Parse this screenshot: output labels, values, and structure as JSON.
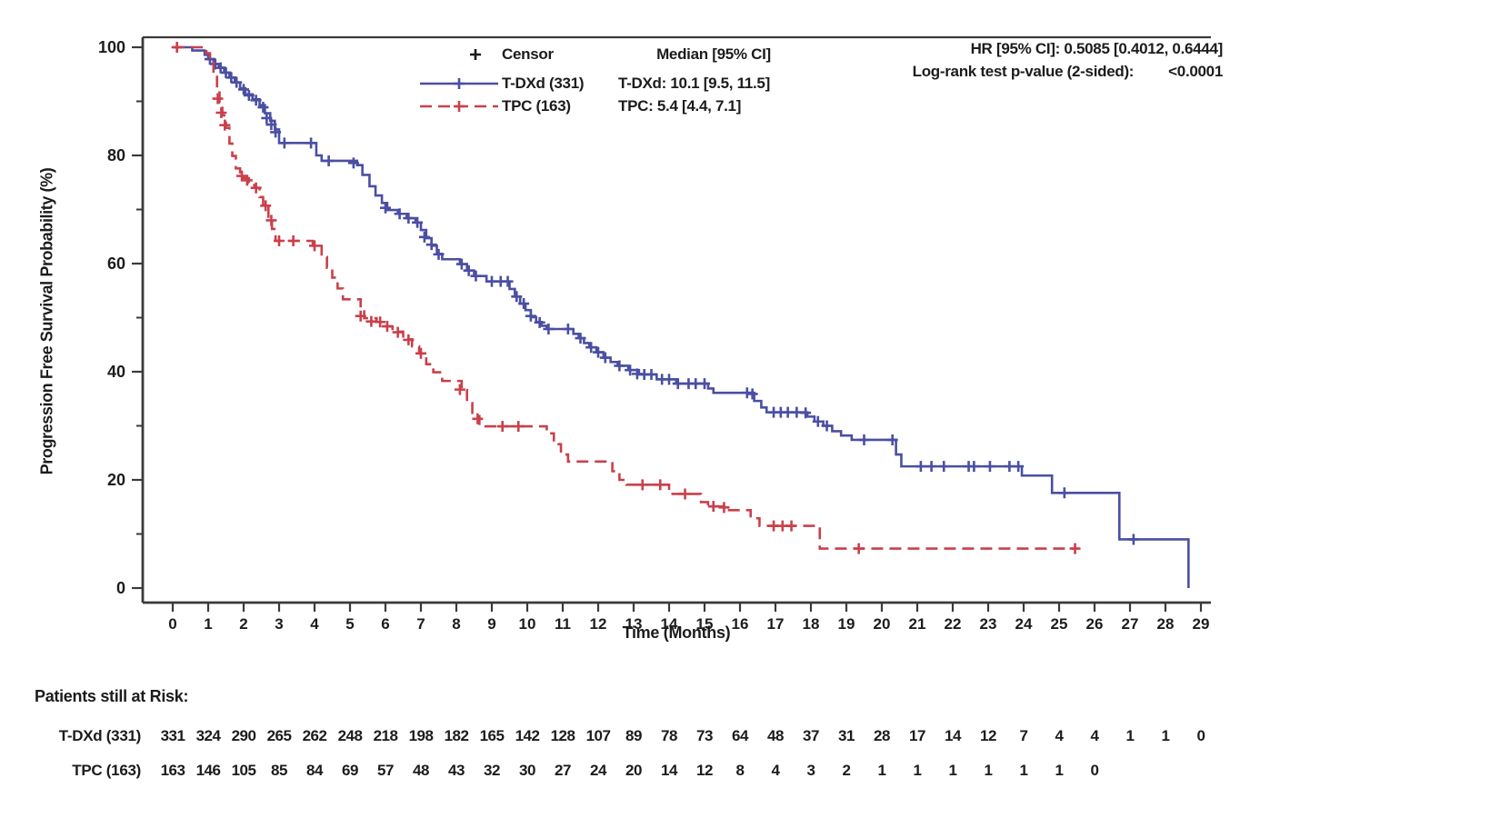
{
  "header": {
    "hr_text": "HR [95% CI]: 0.5085 [0.4012, 0.6444]",
    "logrank_label": "Log-rank test p-value (2-sided):",
    "logrank_value": "<0.0001"
  },
  "legend": {
    "censor_label": "Censor",
    "tdxd_label": "T-DXd (331)",
    "tpc_label": "TPC (163)"
  },
  "medians": {
    "header": "Median [95% CI]",
    "tdxd": "T-DXd: 10.1 [9.5, 11.5]",
    "tpc": "TPC: 5.4 [4.4, 7.1]"
  },
  "chart_data": {
    "type": "line",
    "subtype": "kaplan-meier-step",
    "xlabel": "Time (Months)",
    "ylabel": "Progression Free Survival Probability (%)",
    "xlim": [
      0,
      29
    ],
    "ylim": [
      0,
      100
    ],
    "x_ticks": [
      0,
      1,
      2,
      3,
      4,
      5,
      6,
      7,
      8,
      9,
      10,
      11,
      12,
      13,
      14,
      15,
      16,
      17,
      18,
      19,
      20,
      21,
      22,
      23,
      24,
      25,
      26,
      27,
      28,
      29
    ],
    "y_ticks_major": [
      0,
      20,
      40,
      60,
      80,
      100
    ],
    "y_ticks_minor": [
      10,
      30,
      50,
      70,
      90
    ],
    "grid": false,
    "legend_position": "top-center",
    "colors": {
      "tdxd": "#4a4fa2",
      "tpc": "#c9404b",
      "censor_mark": "#1c1c1c",
      "axis": "#3a3a3a"
    },
    "series": [
      {
        "name": "T-DXd (331)",
        "color": "#4a4fa2",
        "style": "solid",
        "median": 10.1,
        "end_time": 28.65,
        "steps": [
          [
            0,
            100
          ],
          [
            0.55,
            99.4
          ],
          [
            0.9,
            98.6
          ],
          [
            1.0,
            97.8
          ],
          [
            1.15,
            96.9
          ],
          [
            1.3,
            96.2
          ],
          [
            1.45,
            95.3
          ],
          [
            1.6,
            94.4
          ],
          [
            1.75,
            93.5
          ],
          [
            1.9,
            92.4
          ],
          [
            2.05,
            91.3
          ],
          [
            2.25,
            90.4
          ],
          [
            2.45,
            89.3
          ],
          [
            2.6,
            87.8
          ],
          [
            2.75,
            86.4
          ],
          [
            2.88,
            84.8
          ],
          [
            3.0,
            82.3
          ],
          [
            4.05,
            80.0
          ],
          [
            4.2,
            79.0
          ],
          [
            5.2,
            78.2
          ],
          [
            5.35,
            76.4
          ],
          [
            5.55,
            74.3
          ],
          [
            5.72,
            72.6
          ],
          [
            5.9,
            71.2
          ],
          [
            6.05,
            69.9
          ],
          [
            6.35,
            69.2
          ],
          [
            6.6,
            68.4
          ],
          [
            6.85,
            67.6
          ],
          [
            7.0,
            66.2
          ],
          [
            7.15,
            64.7
          ],
          [
            7.3,
            63.3
          ],
          [
            7.45,
            61.8
          ],
          [
            7.6,
            60.8
          ],
          [
            8.1,
            59.9
          ],
          [
            8.3,
            58.7
          ],
          [
            8.5,
            57.7
          ],
          [
            8.85,
            56.7
          ],
          [
            9.5,
            55.3
          ],
          [
            9.65,
            53.9
          ],
          [
            9.8,
            52.6
          ],
          [
            9.95,
            51.4
          ],
          [
            10.1,
            50.1
          ],
          [
            10.25,
            49.2
          ],
          [
            10.4,
            48.5
          ],
          [
            10.55,
            47.9
          ],
          [
            11.3,
            47.0
          ],
          [
            11.45,
            46.2
          ],
          [
            11.6,
            45.3
          ],
          [
            11.75,
            44.5
          ],
          [
            11.95,
            43.6
          ],
          [
            12.15,
            42.6
          ],
          [
            12.35,
            41.8
          ],
          [
            12.55,
            41.1
          ],
          [
            12.85,
            40.3
          ],
          [
            13.15,
            39.5
          ],
          [
            13.65,
            38.6
          ],
          [
            14.2,
            37.8
          ],
          [
            15.1,
            36.9
          ],
          [
            15.25,
            36.1
          ],
          [
            16.4,
            34.6
          ],
          [
            16.6,
            33.4
          ],
          [
            16.75,
            32.5
          ],
          [
            17.9,
            31.7
          ],
          [
            18.1,
            30.8
          ],
          [
            18.35,
            30.0
          ],
          [
            18.6,
            29.0
          ],
          [
            18.85,
            28.2
          ],
          [
            19.15,
            27.4
          ],
          [
            20.4,
            24.7
          ],
          [
            20.55,
            22.5
          ],
          [
            23.95,
            20.8
          ],
          [
            24.8,
            17.6
          ],
          [
            26.7,
            9.0
          ],
          [
            28.65,
            0
          ]
        ],
        "censors": [
          [
            1.05,
            97.8
          ],
          [
            1.2,
            96.9
          ],
          [
            1.35,
            96.2
          ],
          [
            1.5,
            95.3
          ],
          [
            1.65,
            94.4
          ],
          [
            1.8,
            93.5
          ],
          [
            2.0,
            92.2
          ],
          [
            2.15,
            91.1
          ],
          [
            2.35,
            90.2
          ],
          [
            2.55,
            88.9
          ],
          [
            2.65,
            86.9
          ],
          [
            2.78,
            85.7
          ],
          [
            2.9,
            84.3
          ],
          [
            3.15,
            82.3
          ],
          [
            3.9,
            82.3
          ],
          [
            4.4,
            79.0
          ],
          [
            5.1,
            78.6
          ],
          [
            6.0,
            70.3
          ],
          [
            6.4,
            69.2
          ],
          [
            6.65,
            68.4
          ],
          [
            6.9,
            67.6
          ],
          [
            7.1,
            64.9
          ],
          [
            7.3,
            63.5
          ],
          [
            7.5,
            61.7
          ],
          [
            8.15,
            59.9
          ],
          [
            8.35,
            58.7
          ],
          [
            8.55,
            57.7
          ],
          [
            9.0,
            56.7
          ],
          [
            9.25,
            56.7
          ],
          [
            9.45,
            56.7
          ],
          [
            9.7,
            53.9
          ],
          [
            9.9,
            52.6
          ],
          [
            10.1,
            50.3
          ],
          [
            10.35,
            49.1
          ],
          [
            10.6,
            47.9
          ],
          [
            11.15,
            47.9
          ],
          [
            11.5,
            46.2
          ],
          [
            11.8,
            44.5
          ],
          [
            12.0,
            43.6
          ],
          [
            12.2,
            42.6
          ],
          [
            12.6,
            41.1
          ],
          [
            12.9,
            40.3
          ],
          [
            13.1,
            39.6
          ],
          [
            13.3,
            39.5
          ],
          [
            13.5,
            39.5
          ],
          [
            13.8,
            38.6
          ],
          [
            14.0,
            38.6
          ],
          [
            14.25,
            37.8
          ],
          [
            14.55,
            37.8
          ],
          [
            14.75,
            37.8
          ],
          [
            15.0,
            37.8
          ],
          [
            16.2,
            36.1
          ],
          [
            16.35,
            35.9
          ],
          [
            16.95,
            32.5
          ],
          [
            17.15,
            32.5
          ],
          [
            17.35,
            32.5
          ],
          [
            17.6,
            32.5
          ],
          [
            17.85,
            32.4
          ],
          [
            18.2,
            30.8
          ],
          [
            18.45,
            30.0
          ],
          [
            19.5,
            27.4
          ],
          [
            20.3,
            27.4
          ],
          [
            21.1,
            22.5
          ],
          [
            21.4,
            22.5
          ],
          [
            21.75,
            22.5
          ],
          [
            22.45,
            22.5
          ],
          [
            22.6,
            22.5
          ],
          [
            23.05,
            22.5
          ],
          [
            23.6,
            22.5
          ],
          [
            23.85,
            22.5
          ],
          [
            25.15,
            17.6
          ],
          [
            27.1,
            9.0
          ]
        ]
      },
      {
        "name": "TPC (163)",
        "color": "#c9404b",
        "style": "dashed",
        "median": 5.4,
        "end_time": 25.5,
        "steps": [
          [
            0,
            100
          ],
          [
            0.95,
            98.9
          ],
          [
            1.05,
            97.2
          ],
          [
            1.15,
            94.9
          ],
          [
            1.25,
            92.2
          ],
          [
            1.32,
            89.8
          ],
          [
            1.4,
            87.4
          ],
          [
            1.5,
            85.1
          ],
          [
            1.6,
            82.2
          ],
          [
            1.68,
            79.9
          ],
          [
            1.78,
            77.6
          ],
          [
            1.9,
            75.8
          ],
          [
            2.15,
            75.0
          ],
          [
            2.3,
            74.0
          ],
          [
            2.45,
            72.3
          ],
          [
            2.55,
            70.7
          ],
          [
            2.7,
            68.2
          ],
          [
            2.8,
            66.4
          ],
          [
            2.9,
            64.2
          ],
          [
            3.95,
            63.3
          ],
          [
            4.2,
            61.2
          ],
          [
            4.35,
            59.2
          ],
          [
            4.5,
            57.4
          ],
          [
            4.65,
            55.4
          ],
          [
            4.8,
            53.4
          ],
          [
            5.3,
            51.7
          ],
          [
            5.4,
            49.9
          ],
          [
            5.75,
            49.2
          ],
          [
            5.95,
            48.4
          ],
          [
            6.2,
            47.4
          ],
          [
            6.5,
            46.0
          ],
          [
            6.75,
            44.7
          ],
          [
            6.95,
            43.4
          ],
          [
            7.15,
            41.4
          ],
          [
            7.35,
            39.9
          ],
          [
            7.6,
            38.3
          ],
          [
            8.15,
            36.6
          ],
          [
            8.3,
            34.2
          ],
          [
            8.45,
            31.8
          ],
          [
            8.65,
            29.9
          ],
          [
            10.55,
            28.6
          ],
          [
            10.75,
            26.6
          ],
          [
            10.95,
            24.7
          ],
          [
            11.15,
            23.4
          ],
          [
            12.4,
            21.6
          ],
          [
            12.6,
            20.0
          ],
          [
            12.8,
            19.1
          ],
          [
            14.0,
            17.4
          ],
          [
            14.9,
            15.9
          ],
          [
            15.1,
            15.1
          ],
          [
            15.6,
            14.4
          ],
          [
            16.3,
            12.9
          ],
          [
            16.55,
            11.5
          ],
          [
            18.25,
            7.3
          ]
        ],
        "censors": [
          [
            0.12,
            100
          ],
          [
            1.27,
            90.5
          ],
          [
            1.37,
            87.9
          ],
          [
            1.47,
            85.6
          ],
          [
            1.95,
            76.2
          ],
          [
            2.1,
            75.4
          ],
          [
            2.35,
            74.0
          ],
          [
            2.62,
            70.7
          ],
          [
            2.78,
            68.0
          ],
          [
            3.0,
            64.2
          ],
          [
            3.4,
            64.2
          ],
          [
            4.0,
            63.3
          ],
          [
            5.3,
            50.3
          ],
          [
            5.6,
            49.3
          ],
          [
            5.85,
            49.2
          ],
          [
            6.05,
            48.4
          ],
          [
            6.35,
            47.3
          ],
          [
            6.65,
            45.9
          ],
          [
            7.0,
            43.4
          ],
          [
            8.1,
            36.7
          ],
          [
            8.6,
            31.3
          ],
          [
            9.3,
            29.9
          ],
          [
            9.75,
            29.9
          ],
          [
            13.25,
            19.1
          ],
          [
            13.75,
            19.1
          ],
          [
            14.45,
            17.4
          ],
          [
            15.25,
            15.1
          ],
          [
            15.55,
            14.9
          ],
          [
            16.95,
            11.5
          ],
          [
            17.2,
            11.5
          ],
          [
            17.45,
            11.5
          ],
          [
            19.35,
            7.3
          ],
          [
            25.45,
            7.3
          ]
        ]
      }
    ],
    "risk_table": {
      "title": "Patients still at Risk:",
      "rows": [
        {
          "label": "T-DXd (331)",
          "values": [
            331,
            324,
            290,
            265,
            262,
            248,
            218,
            198,
            182,
            165,
            142,
            128,
            107,
            89,
            78,
            73,
            64,
            48,
            37,
            31,
            28,
            17,
            14,
            12,
            7,
            4,
            4,
            1,
            1,
            0
          ]
        },
        {
          "label": "TPC (163)",
          "values": [
            163,
            146,
            105,
            85,
            84,
            69,
            57,
            48,
            43,
            32,
            30,
            27,
            24,
            20,
            14,
            12,
            8,
            4,
            3,
            2,
            1,
            1,
            1,
            1,
            1,
            1,
            0
          ]
        }
      ]
    }
  }
}
